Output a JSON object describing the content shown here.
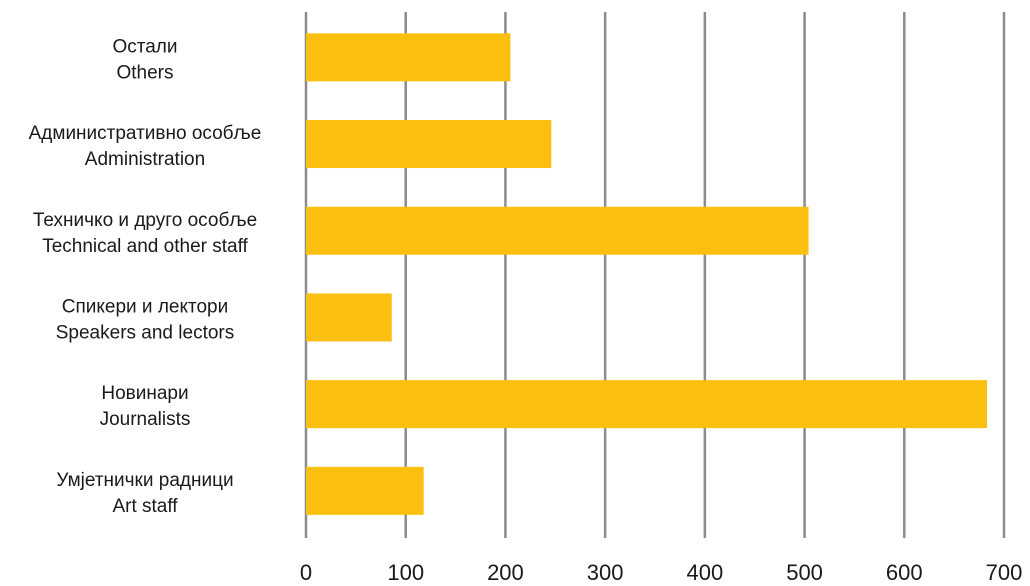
{
  "chart_data": {
    "type": "bar",
    "orientation": "horizontal",
    "title": "",
    "xlabel": "",
    "ylabel": "",
    "categories": [
      {
        "line1": "Остали",
        "line2": "Others"
      },
      {
        "line1": "Административно особље",
        "line2": "Administration"
      },
      {
        "line1": "Техничко и друго особље",
        "line2": "Technical and other staff"
      },
      {
        "line1": "Спикери и лектори",
        "line2": "Speakers and lectors"
      },
      {
        "line1": "Новинари",
        "line2": "Journalists"
      },
      {
        "line1": "Умјетнички радници",
        "line2": "Art staff"
      }
    ],
    "values": [
      205,
      246,
      504,
      86,
      683,
      118
    ],
    "xlim": [
      0,
      700
    ],
    "xticks": [
      "0",
      "100",
      "200",
      "300",
      "400",
      "500",
      "600",
      "700"
    ],
    "grid": true,
    "legend": "none",
    "colors": {
      "bar": "#fbbf10",
      "grid": "#8c8c8c"
    }
  }
}
